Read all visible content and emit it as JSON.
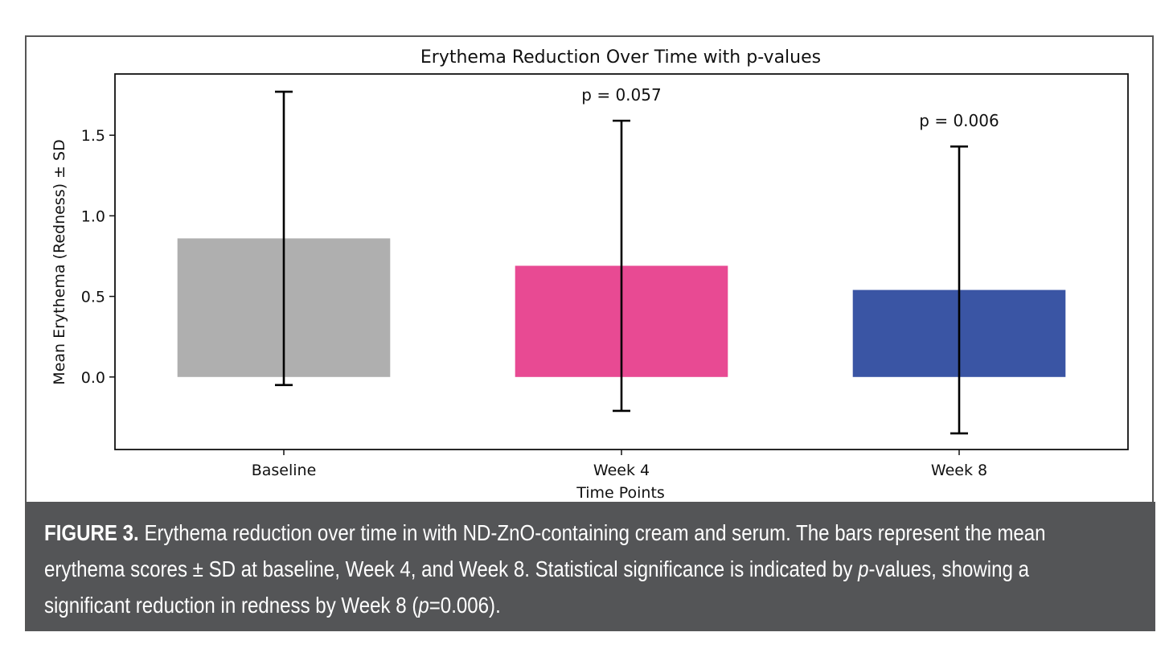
{
  "chart_data": {
    "type": "bar",
    "title": "Erythema Reduction Over Time with p-values",
    "xlabel": "Time Points",
    "ylabel": "Mean Erythema (Redness) ± SD",
    "categories": [
      "Baseline",
      "Week 4",
      "Week 8"
    ],
    "values": [
      0.86,
      0.69,
      0.54
    ],
    "errors": [
      0.91,
      0.9,
      0.89
    ],
    "annotations": [
      "",
      "p = 0.057",
      "p = 0.006"
    ],
    "colors": [
      "#afafaf",
      "#e84a93",
      "#3a55a4"
    ],
    "ylim": [
      -0.45,
      1.88
    ],
    "yticks": [
      0.0,
      0.5,
      1.0,
      1.5
    ],
    "ytick_labels": [
      "0.0",
      "0.5",
      "1.0",
      "1.5"
    ],
    "grid": false
  },
  "caption": {
    "label": "FIGURE 3.",
    "part1": " Erythema reduction over time in with ND-ZnO-containing cream and serum. The bars represent the mean erythema scores ± SD at baseline, Week 4, and Week 8. Statistical significance is indicated by ",
    "italic_p": "p",
    "part2": "-values, showing a significant reduction in redness by Week 8 (",
    "italic_p2": "p",
    "part3": "=0.006)."
  }
}
